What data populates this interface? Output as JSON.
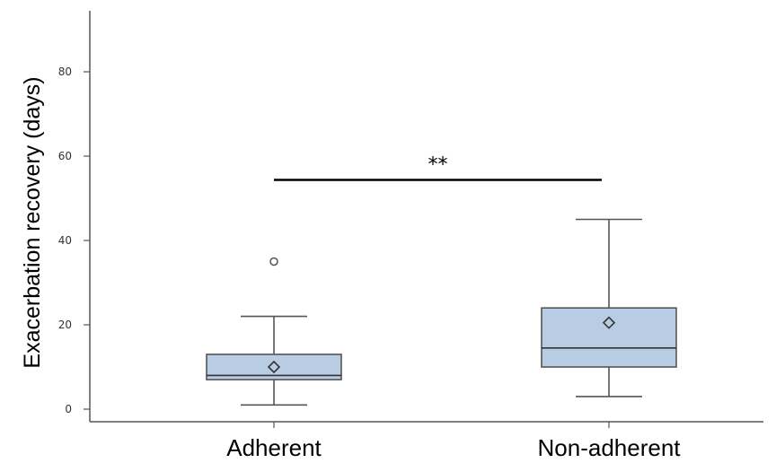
{
  "chart_data": {
    "type": "box",
    "title": "",
    "ylabel": "Exacerbation recovery (days)",
    "xlabel": "",
    "ylim": [
      -2,
      94
    ],
    "yticks": [
      0,
      20,
      40,
      60,
      80
    ],
    "grid": false,
    "categories": [
      "Adherent",
      "Non-adherent"
    ],
    "boxes": [
      {
        "category": "Adherent",
        "min": 1,
        "q1": 7,
        "median": 8,
        "q3": 13,
        "max": 22,
        "mean": 10,
        "outliers": [
          35
        ]
      },
      {
        "category": "Non-adherent",
        "min": 3,
        "q1": 10,
        "median": 14.5,
        "q3": 24,
        "max": 45,
        "mean": 20.5,
        "outliers": []
      }
    ],
    "significance": {
      "label": "**",
      "from": "Adherent",
      "to": "Non-adherent",
      "y": 55
    },
    "colors": {
      "box_fill": "#b8cce4",
      "box_stroke": "#555555",
      "axis": "#555555"
    }
  }
}
